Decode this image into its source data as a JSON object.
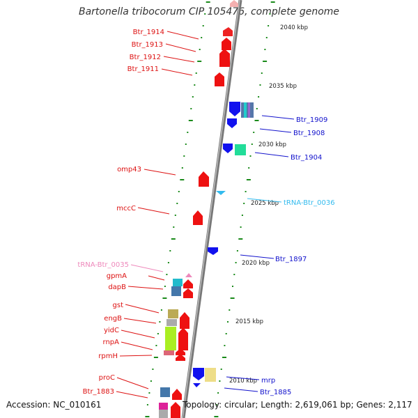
{
  "title": "Bartonella tribocorum CIP 105476, complete genome",
  "footer": {
    "accession": "Accession: NC_010161",
    "topology": "Topology: circular; Length: 2,619,061 bp; Genes: 2,117"
  },
  "colors": {
    "forward_gene": "#ee1111",
    "reverse_gene": "#1111ee",
    "trna_reverse": "#33bbee",
    "trna_forward": "#ee88bb",
    "backbone": "#888888",
    "ruler": "#1a8a1a"
  },
  "kbp_marks": [
    "2040 kbp",
    "2035 kbp",
    "2030 kbp",
    "2025 kbp",
    "2020 kbp",
    "2015 kbp",
    "2010 kbp"
  ],
  "left_labels": [
    "Btr_1914",
    "Btr_1913",
    "Btr_1912",
    "Btr_1911",
    "omp43",
    "mccC",
    "tRNA-Btr_0035",
    "gpmA",
    "dapB",
    "gst",
    "engB",
    "yidC",
    "rnpA",
    "rpmH",
    "proC",
    "Btr_1883"
  ],
  "right_labels": [
    "Btr_1909",
    "Btr_1908",
    "Btr_1904",
    "tRNA-Btr_0036",
    "Btr_1897",
    "mrp",
    "Btr_1885"
  ]
}
